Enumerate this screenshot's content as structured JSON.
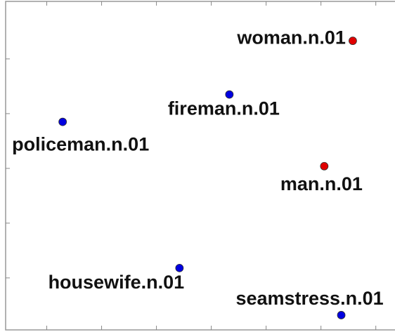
{
  "chart_data": {
    "type": "scatter",
    "x": [
      5.58,
      3.33,
      0.29,
      5.06,
      2.42,
      5.37
    ],
    "values": [
      4.33,
      3.35,
      2.85,
      2.04,
      0.18,
      -0.68
    ],
    "labels": [
      "woman.n.01",
      "fireman.n.01",
      "policeman.n.01",
      "man.n.01",
      "housewife.n.01",
      "seamstress.n.01"
    ],
    "colors": [
      "#e00000",
      "#0000e0",
      "#0000e0",
      "#e00000",
      "#0000e0",
      "#0000e0"
    ],
    "xlim": [
      -0.75,
      6.35
    ],
    "xticks": [
      0,
      1,
      2,
      3,
      4,
      5,
      6
    ],
    "ylim": [
      -0.95,
      5.05
    ],
    "yticks": [
      0,
      1,
      2,
      3,
      4
    ]
  }
}
